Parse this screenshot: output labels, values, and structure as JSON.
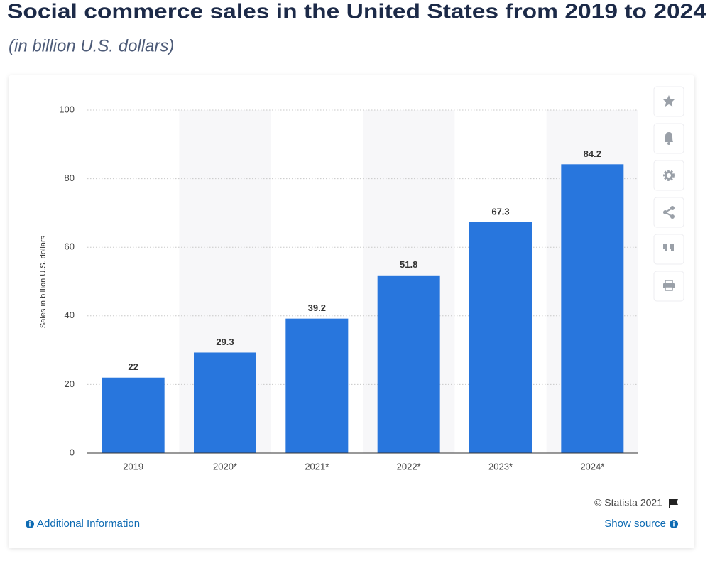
{
  "chart_data": {
    "type": "bar",
    "title": "Social commerce sales in the United States from 2019 to 2024",
    "subtitle": "(in billion U.S. dollars)",
    "y_label": "Sales in billion U.S. dollars",
    "categories": [
      "2019",
      "2020*",
      "2021*",
      "2022*",
      "2023*",
      "2024*"
    ],
    "values": [
      22,
      29.3,
      39.2,
      51.8,
      67.3,
      84.2
    ],
    "color": "#2876dd",
    "ylim": [
      0,
      100
    ],
    "yticks": [
      0,
      20,
      40,
      60,
      80,
      100
    ],
    "grid": true
  },
  "footer": {
    "copyright": "© Statista 2021",
    "additional_info": "Additional Information",
    "show_source": "Show source"
  }
}
